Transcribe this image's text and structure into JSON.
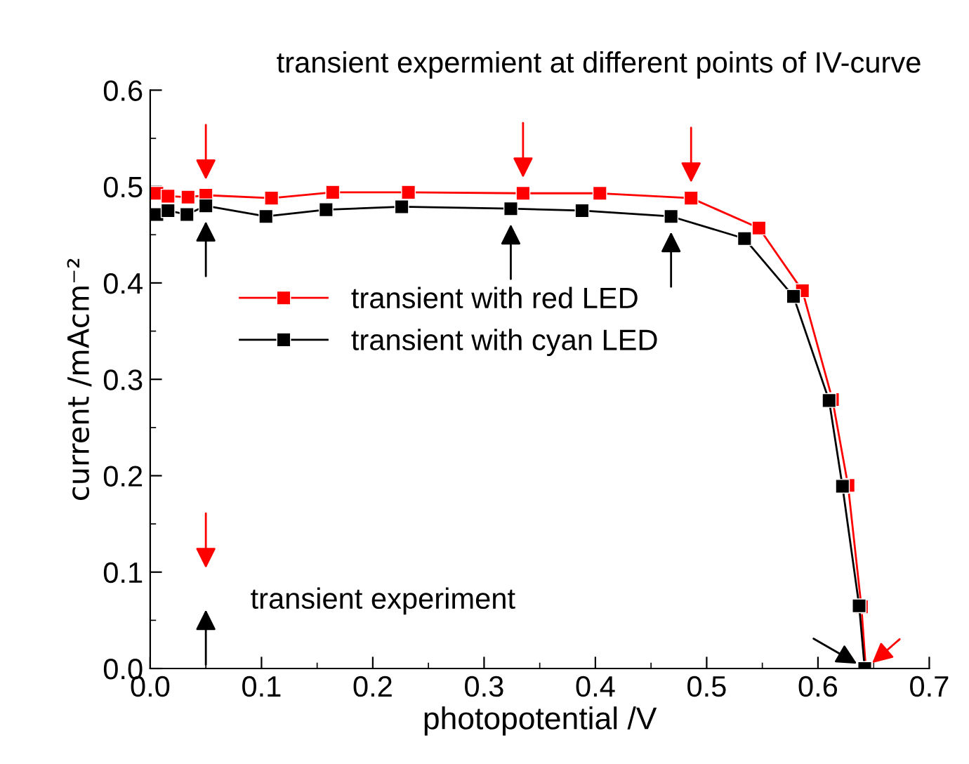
{
  "chart_data": {
    "type": "line",
    "title": "transient expermient at different points of IV-curve",
    "xlabel": "photopotential /V",
    "ylabel": "current /mAcm⁻²",
    "series": [
      {
        "name": "transient with red LED",
        "color": "#ff0000",
        "x": [
          0.006,
          0.016,
          0.034,
          0.05,
          0.109,
          0.164,
          0.232,
          0.335,
          0.404,
          0.486,
          0.547,
          0.586,
          0.613,
          0.627,
          0.639,
          0.643
        ],
        "values": [
          0.493,
          0.49,
          0.489,
          0.491,
          0.488,
          0.494,
          0.494,
          0.493,
          0.493,
          0.488,
          0.457,
          0.392,
          0.279,
          0.19,
          0.064,
          0.0
        ]
      },
      {
        "name": "transient with cyan LED",
        "color": "#000000",
        "x": [
          0.006,
          0.016,
          0.033,
          0.05,
          0.104,
          0.158,
          0.226,
          0.324,
          0.388,
          0.468,
          0.534,
          0.578,
          0.61,
          0.622,
          0.637,
          0.642
        ],
        "values": [
          0.471,
          0.475,
          0.471,
          0.48,
          0.469,
          0.476,
          0.479,
          0.477,
          0.475,
          0.469,
          0.446,
          0.386,
          0.278,
          0.189,
          0.065,
          0.0
        ]
      }
    ],
    "annotations": [
      "transient experiment"
    ],
    "xlim": [
      0.0,
      0.7
    ],
    "xticks": [
      {
        "value": 0,
        "label": "0.0"
      },
      0.1,
      0.2,
      0.3,
      0.4,
      0.5,
      0.6,
      0.7
    ],
    "ylim": [
      0.0,
      0.6
    ],
    "yticks": [
      {
        "value": 0,
        "label": "0.0"
      },
      0.1,
      0.2,
      0.3,
      0.4,
      0.5,
      0.6
    ],
    "marker": "square",
    "line_style": "solid",
    "legend": "left",
    "grid": false
  }
}
